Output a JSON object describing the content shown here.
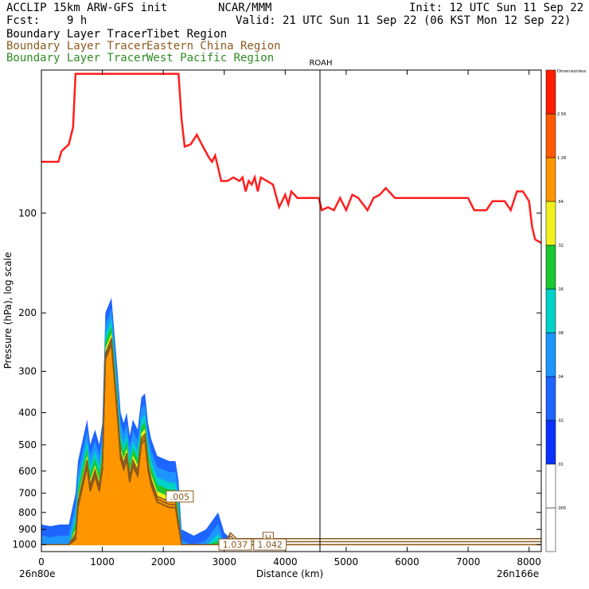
{
  "header": {
    "model": "ACCLIP 15km ARW-GFS init",
    "org": "NCAR/MMM",
    "init": "Init: 12 UTC Sun 11 Sep 22",
    "fcst_label": "Fcst:",
    "fcst_value": "9 h",
    "valid": "Valid: 21 UTC Sun 11 Sep 22 (06 KST Mon 12 Sep 22)"
  },
  "legend": [
    {
      "name": "Boundary Layer Tracer",
      "region": "Tibet Region",
      "color": "#000000"
    },
    {
      "name": "Boundary Layer Tracer",
      "region": "Eastern China Region",
      "color": "#8b5a1e"
    },
    {
      "name": "Boundary Layer Tracer",
      "region": "West Pacific Region",
      "color": "#2e8b22"
    }
  ],
  "chart_data": {
    "type": "area",
    "xlabel": "Distance (km)",
    "ylabel": "Pressure (hPa), log scale",
    "xlim": [
      0,
      8200
    ],
    "ylim": [
      1050,
      37
    ],
    "x_ticks": [
      0,
      1000,
      2000,
      3000,
      4000,
      5000,
      6000,
      7000,
      8000
    ],
    "y_ticks": [
      100,
      200,
      300,
      400,
      500,
      600,
      700,
      800,
      900,
      1000
    ],
    "start_label": "26n80e",
    "end_label": "26n166e",
    "marker_label": "ROAH",
    "marker_x": 4570,
    "colorbar": {
      "title": "Dimensionless",
      "levels": [
        ".005",
        ".01",
        ".02",
        ".04",
        ".08",
        ".16",
        ".32",
        ".64",
        "1.28",
        "2.56"
      ],
      "colors": [
        "#ffffff",
        "#ffffff",
        "#0a32ff",
        "#1e64ff",
        "#1e96ff",
        "#00d2c8",
        "#19c832",
        "#f0f01e",
        "#ff9600",
        "#ff5a00",
        "#ff1e00"
      ]
    },
    "annotations": [
      {
        "text": ".005",
        "x": 2270,
        "p": 720
      },
      {
        "text": "1.037",
        "x": 3180,
        "p": 1005
      },
      {
        "text": "H",
        "x": 3720,
        "p": 960
      },
      {
        "text": "1.042",
        "x": 3750,
        "p": 1005
      }
    ],
    "tropopause": {
      "color": "#ff1e1e",
      "points": [
        [
          0,
          70
        ],
        [
          280,
          70
        ],
        [
          330,
          65
        ],
        [
          450,
          62
        ],
        [
          520,
          55
        ],
        [
          560,
          38
        ],
        [
          2250,
          38
        ],
        [
          2300,
          52
        ],
        [
          2350,
          63
        ],
        [
          2450,
          62
        ],
        [
          2550,
          58
        ],
        [
          2650,
          63
        ],
        [
          2750,
          68
        ],
        [
          2800,
          70
        ],
        [
          2850,
          67
        ],
        [
          2900,
          73
        ],
        [
          2950,
          80
        ],
        [
          3050,
          80
        ],
        [
          3150,
          78
        ],
        [
          3250,
          80
        ],
        [
          3300,
          78
        ],
        [
          3350,
          86
        ],
        [
          3400,
          80
        ],
        [
          3450,
          82
        ],
        [
          3500,
          78
        ],
        [
          3550,
          86
        ],
        [
          3600,
          78
        ],
        [
          3700,
          80
        ],
        [
          3800,
          82
        ],
        [
          3900,
          96
        ],
        [
          3950,
          92
        ],
        [
          4000,
          88
        ],
        [
          4050,
          94
        ],
        [
          4100,
          86
        ],
        [
          4200,
          90
        ],
        [
          4400,
          90
        ],
        [
          4550,
          90
        ],
        [
          4600,
          98
        ],
        [
          4700,
          96
        ],
        [
          4800,
          98
        ],
        [
          4900,
          90
        ],
        [
          5000,
          98
        ],
        [
          5100,
          88
        ],
        [
          5200,
          90
        ],
        [
          5350,
          98
        ],
        [
          5450,
          90
        ],
        [
          5550,
          88
        ],
        [
          5650,
          84
        ],
        [
          5800,
          90
        ],
        [
          6000,
          90
        ],
        [
          6500,
          90
        ],
        [
          7000,
          90
        ],
        [
          7100,
          98
        ],
        [
          7300,
          98
        ],
        [
          7400,
          92
        ],
        [
          7600,
          92
        ],
        [
          7700,
          98
        ],
        [
          7800,
          86
        ],
        [
          7900,
          86
        ],
        [
          8000,
          92
        ],
        [
          8050,
          110
        ],
        [
          8100,
          120
        ],
        [
          8200,
          123
        ]
      ]
    },
    "tracer": {
      "outer_boundary": [
        [
          0,
          870
        ],
        [
          150,
          880
        ],
        [
          300,
          870
        ],
        [
          450,
          870
        ],
        [
          560,
          700
        ],
        [
          600,
          560
        ],
        [
          680,
          480
        ],
        [
          750,
          420
        ],
        [
          800,
          500
        ],
        [
          880,
          450
        ],
        [
          950,
          500
        ],
        [
          1000,
          430
        ],
        [
          1050,
          200
        ],
        [
          1150,
          180
        ],
        [
          1250,
          300
        ],
        [
          1300,
          400
        ],
        [
          1350,
          430
        ],
        [
          1400,
          400
        ],
        [
          1450,
          470
        ],
        [
          1500,
          420
        ],
        [
          1580,
          450
        ],
        [
          1640,
          360
        ],
        [
          1700,
          350
        ],
        [
          1750,
          430
        ],
        [
          1800,
          480
        ],
        [
          1900,
          540
        ],
        [
          2000,
          550
        ],
        [
          2100,
          560
        ],
        [
          2200,
          560
        ],
        [
          2250,
          640
        ],
        [
          2300,
          900
        ],
        [
          2500,
          940
        ],
        [
          2700,
          900
        ],
        [
          2900,
          800
        ],
        [
          3000,
          920
        ],
        [
          3100,
          960
        ],
        [
          3200,
          1000
        ],
        [
          3500,
          1000
        ],
        [
          3800,
          1000
        ],
        [
          8200,
          1000
        ]
      ],
      "contour_levels": [
        "0.005",
        "0.01",
        "0.02",
        "0.04",
        "0.08",
        "0.16",
        "0.32",
        "0.64",
        "1.28"
      ]
    }
  }
}
